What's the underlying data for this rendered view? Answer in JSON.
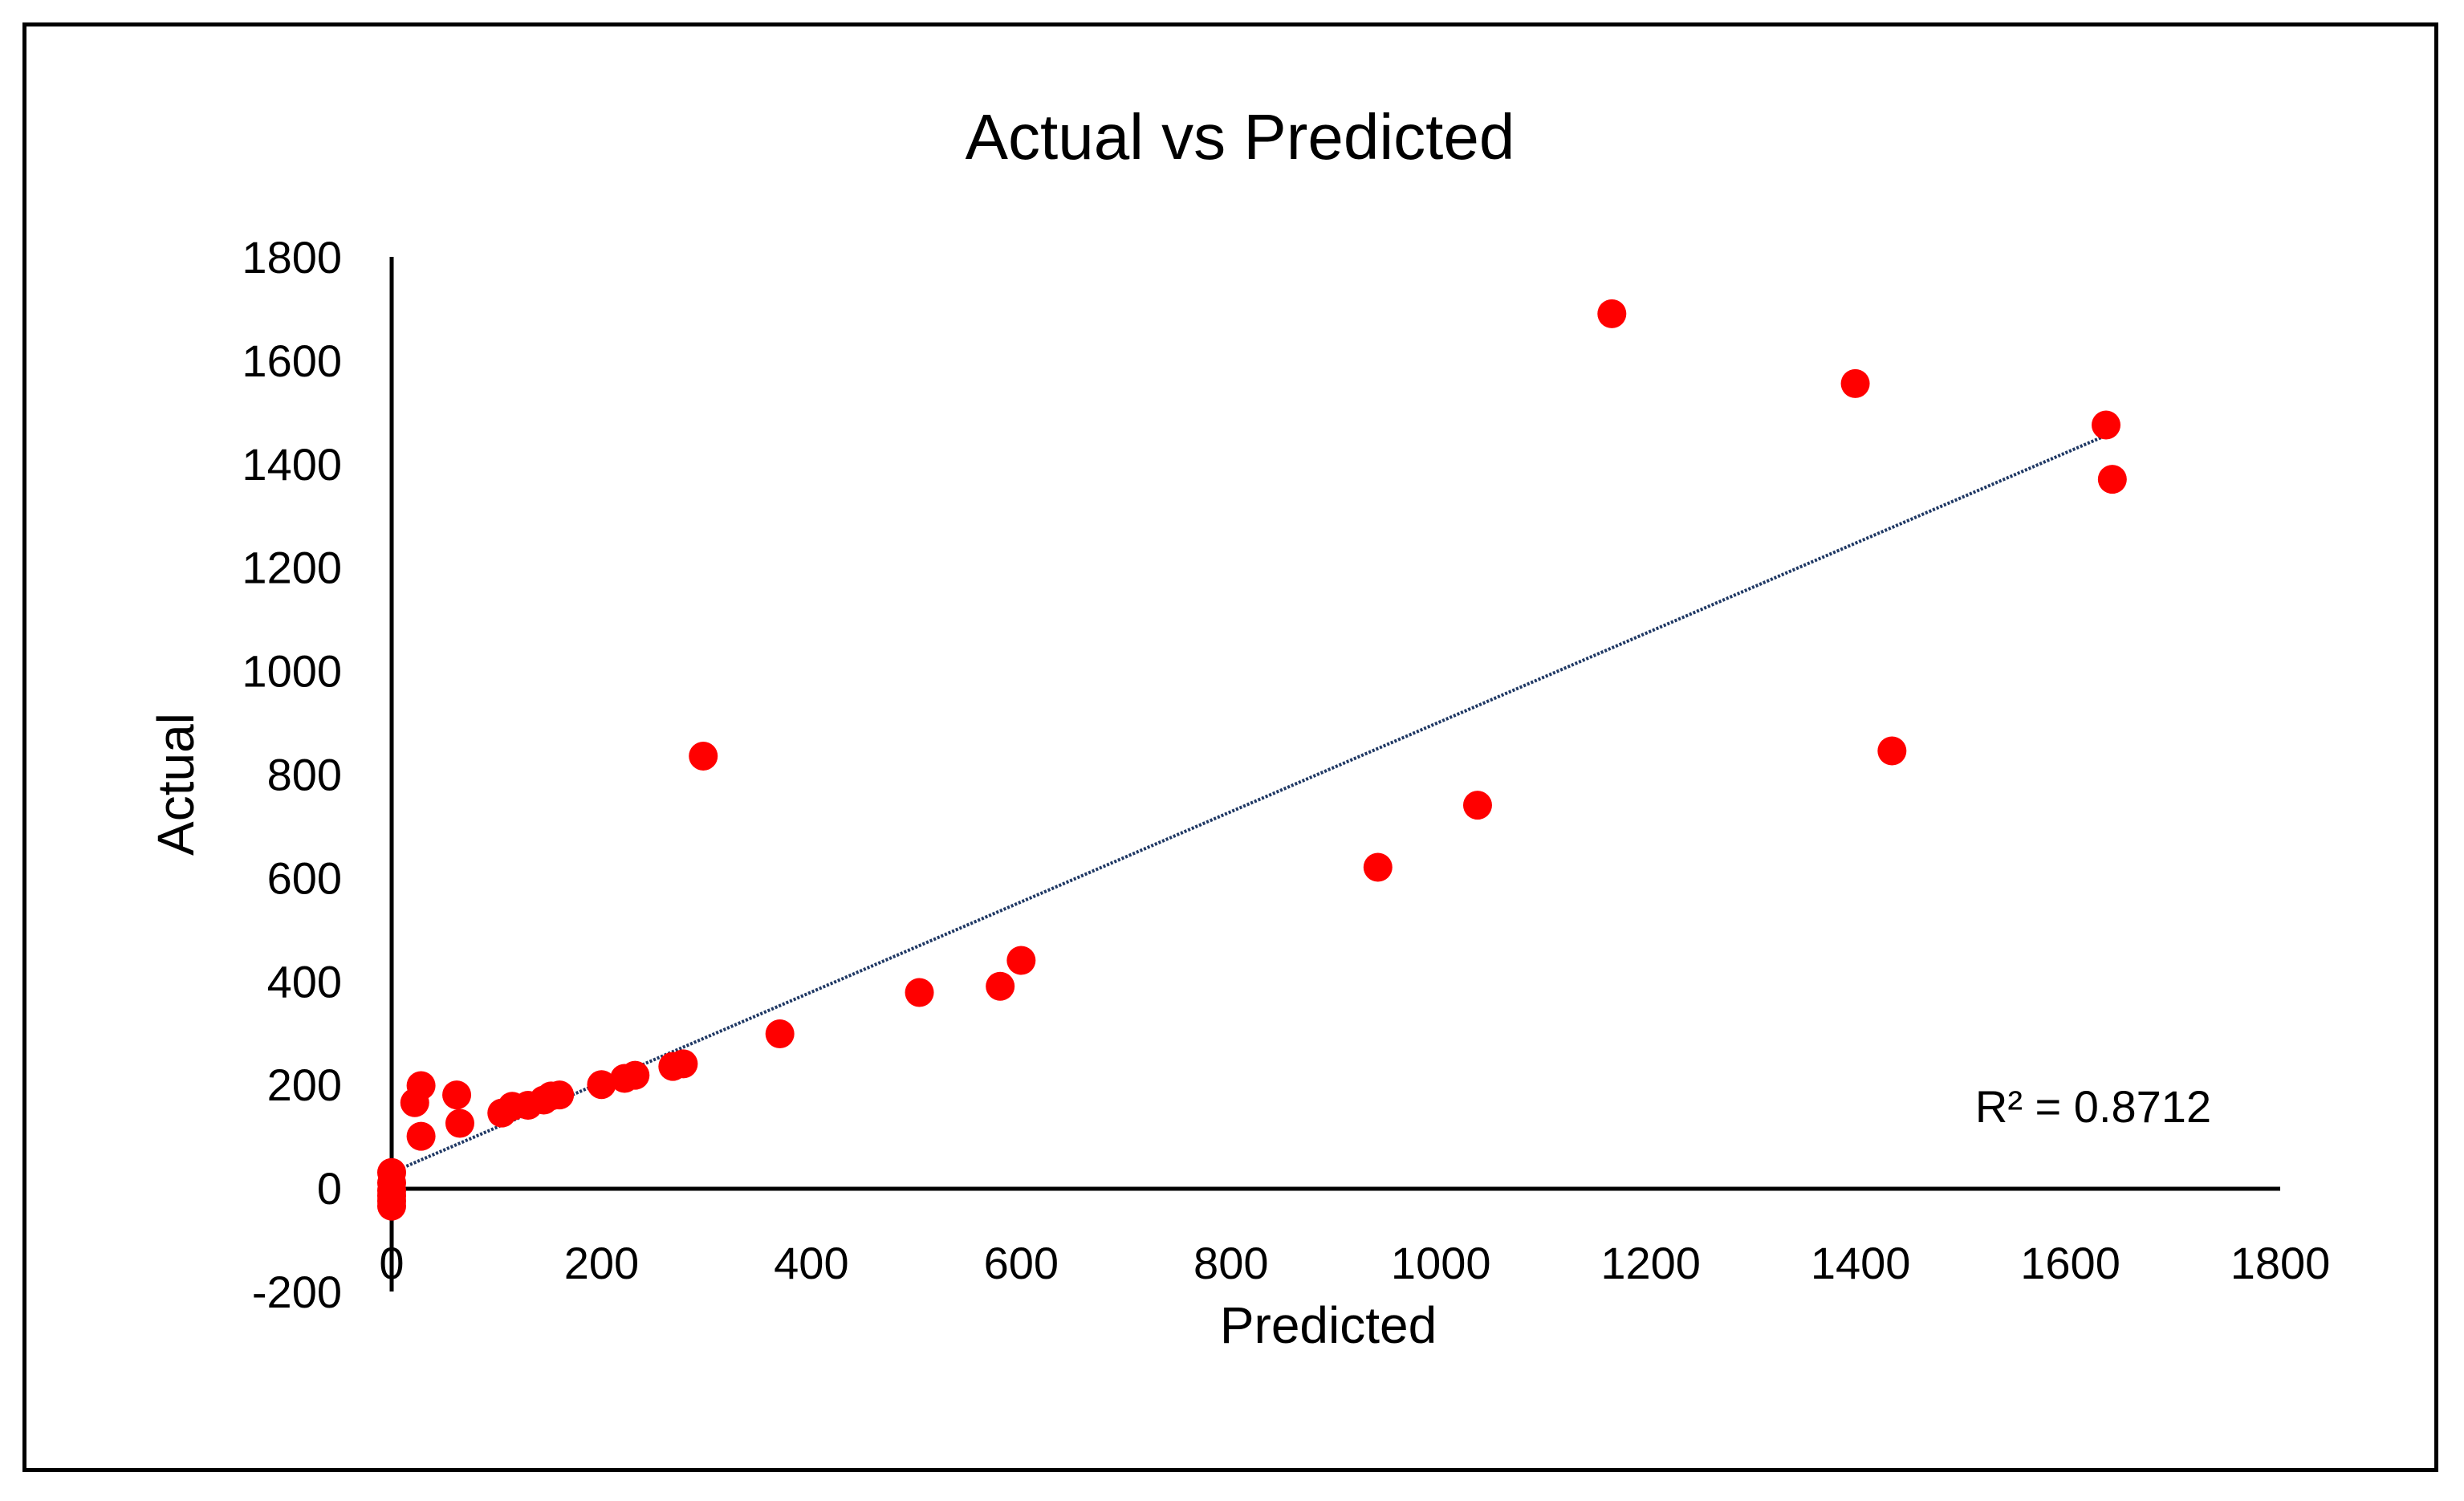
{
  "chart_data": {
    "type": "scatter",
    "title": "Actual vs Predicted",
    "xlabel": "Predicted",
    "ylabel": "Actual",
    "xlim": [
      0,
      1800
    ],
    "ylim": [
      -200,
      1800
    ],
    "x_ticks": [
      "0",
      "200",
      "400",
      "600",
      "800",
      "1000",
      "1200",
      "1400",
      "1600",
      "1800"
    ],
    "y_ticks": [
      "-200",
      "0",
      "200",
      "400",
      "600",
      "800",
      "1000",
      "1200",
      "1400",
      "1600",
      "1800"
    ],
    "grid": false,
    "legend": "none",
    "point_color": "#ff0000",
    "trendline_color": "#1f3864",
    "series": [
      {
        "points": [
          {
            "x": 0,
            "y": 30
          },
          {
            "x": 0,
            "y": 10
          },
          {
            "x": 0,
            "y": -5
          },
          {
            "x": 0,
            "y": -15
          },
          {
            "x": 0,
            "y": -25
          },
          {
            "x": 0,
            "y": -35
          },
          {
            "x": 22,
            "y": 165
          },
          {
            "x": 28,
            "y": 198
          },
          {
            "x": 28,
            "y": 100
          },
          {
            "x": 62,
            "y": 180
          },
          {
            "x": 65,
            "y": 125
          },
          {
            "x": 105,
            "y": 145
          },
          {
            "x": 115,
            "y": 158
          },
          {
            "x": 130,
            "y": 160
          },
          {
            "x": 145,
            "y": 170
          },
          {
            "x": 152,
            "y": 178
          },
          {
            "x": 160,
            "y": 180
          },
          {
            "x": 200,
            "y": 200
          },
          {
            "x": 222,
            "y": 212
          },
          {
            "x": 232,
            "y": 218
          },
          {
            "x": 268,
            "y": 235
          },
          {
            "x": 278,
            "y": 240
          },
          {
            "x": 297,
            "y": 835
          },
          {
            "x": 370,
            "y": 298
          },
          {
            "x": 503,
            "y": 378
          },
          {
            "x": 580,
            "y": 390
          },
          {
            "x": 600,
            "y": 440
          },
          {
            "x": 940,
            "y": 620
          },
          {
            "x": 1035,
            "y": 740
          },
          {
            "x": 1163,
            "y": 1690
          },
          {
            "x": 1395,
            "y": 1555
          },
          {
            "x": 1430,
            "y": 845
          },
          {
            "x": 1634,
            "y": 1475
          },
          {
            "x": 1640,
            "y": 1370
          }
        ]
      }
    ],
    "trendline": {
      "x": [
        0,
        1640
      ],
      "y": [
        30,
        1460
      ]
    },
    "r_squared_label": "R² = 0.8712"
  }
}
